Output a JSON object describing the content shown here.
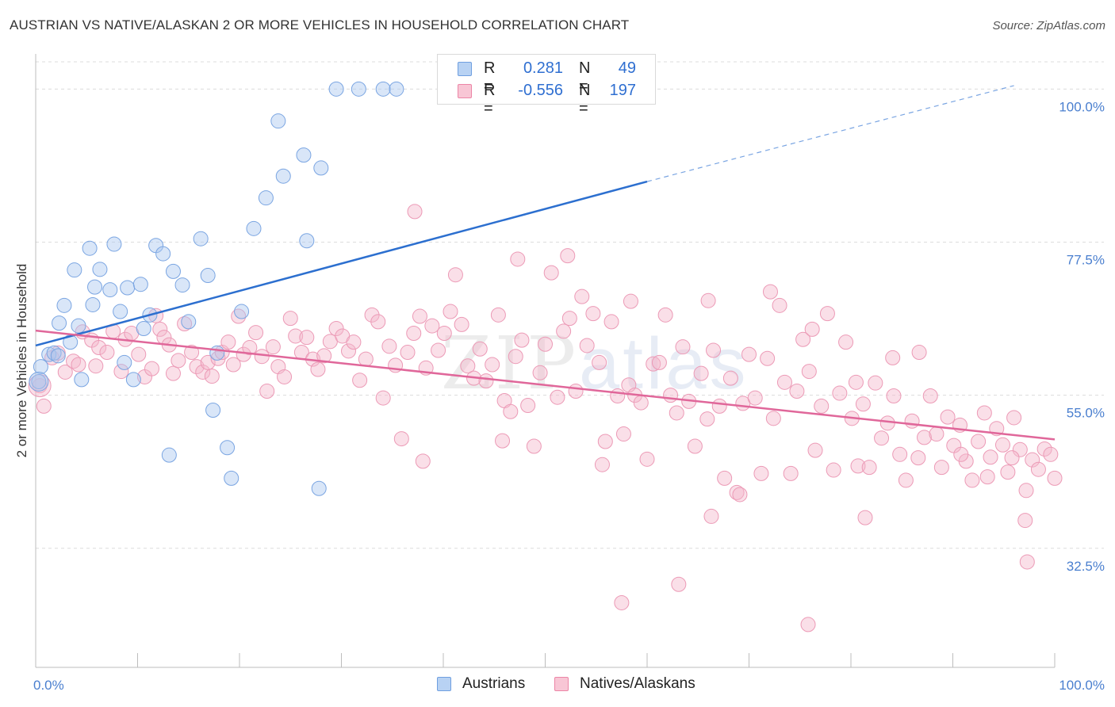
{
  "title": "AUSTRIAN VS NATIVE/ALASKAN 2 OR MORE VEHICLES IN HOUSEHOLD CORRELATION CHART",
  "source": "Source: ZipAtlas.com",
  "watermark": {
    "zip": "ZIP",
    "atlas": "atlas"
  },
  "legend": {
    "rows": [
      {
        "r_label": "R =",
        "r_value": "0.281",
        "n_label": "N =",
        "n_value": "49",
        "color": "#aac8f0"
      },
      {
        "r_label": "R =",
        "r_value": "-0.556",
        "n_label": "N =",
        "n_value": "197",
        "color": "#f5b8cb"
      }
    ]
  },
  "bottom_legend": [
    "Austrians",
    "Natives/Alaskans"
  ],
  "chart_data": {
    "type": "scatter",
    "title": "AUSTRIAN VS NATIVE/ALASKAN 2 OR MORE VEHICLES IN HOUSEHOLD CORRELATION CHART",
    "xlabel": "",
    "ylabel": "2 or more Vehicles in Household",
    "xlim": [
      0,
      100
    ],
    "ylim": [
      15,
      104
    ],
    "x_tick_labels": [
      "0.0%",
      "100.0%"
    ],
    "y_ticks": [
      32.5,
      55.0,
      77.5,
      100.0
    ],
    "y_tick_labels": [
      "32.5%",
      "55.0%",
      "77.5%",
      "100.0%"
    ],
    "grid": true,
    "legend_position": "top-center",
    "colors": {
      "austrians": "#6f9fe0",
      "natives": "#ec85a6",
      "blue_line": "#2c6fcf",
      "pink_line": "#e0679a"
    },
    "series": [
      {
        "name": "Austrians",
        "points": [
          [
            0.3,
            57.0
          ],
          [
            0.5,
            59.2
          ],
          [
            1.3,
            61.0
          ],
          [
            1.8,
            61.2
          ],
          [
            2.2,
            60.8
          ],
          [
            2.3,
            65.6
          ],
          [
            2.8,
            68.2
          ],
          [
            3.4,
            62.8
          ],
          [
            3.8,
            73.4
          ],
          [
            4.2,
            65.2
          ],
          [
            4.5,
            57.3
          ],
          [
            5.3,
            76.6
          ],
          [
            5.6,
            68.3
          ],
          [
            5.8,
            70.9
          ],
          [
            6.3,
            73.5
          ],
          [
            7.3,
            70.5
          ],
          [
            7.7,
            77.2
          ],
          [
            8.3,
            67.3
          ],
          [
            8.7,
            59.8
          ],
          [
            9.0,
            70.8
          ],
          [
            9.6,
            57.3
          ],
          [
            10.3,
            71.3
          ],
          [
            10.6,
            64.8
          ],
          [
            11.2,
            66.8
          ],
          [
            11.8,
            77.0
          ],
          [
            12.5,
            75.8
          ],
          [
            13.1,
            46.2
          ],
          [
            13.5,
            73.2
          ],
          [
            14.4,
            71.2
          ],
          [
            15.0,
            65.8
          ],
          [
            16.2,
            78.0
          ],
          [
            16.9,
            72.6
          ],
          [
            17.4,
            52.8
          ],
          [
            17.8,
            61.2
          ],
          [
            18.8,
            47.3
          ],
          [
            19.2,
            42.8
          ],
          [
            20.2,
            67.3
          ],
          [
            21.4,
            79.5
          ],
          [
            22.6,
            84.0
          ],
          [
            23.8,
            95.3
          ],
          [
            24.3,
            87.2
          ],
          [
            26.3,
            90.3
          ],
          [
            26.6,
            77.7
          ],
          [
            27.8,
            41.3
          ],
          [
            28.0,
            88.4
          ],
          [
            29.5,
            100.0
          ],
          [
            31.7,
            100.0
          ],
          [
            34.1,
            100.0
          ],
          [
            35.4,
            100.0
          ]
        ]
      },
      {
        "name": "Natives/Alaskans",
        "points": [
          [
            0.4,
            56.4
          ],
          [
            0.8,
            53.4
          ],
          [
            1.6,
            60.5
          ],
          [
            2.2,
            61.2
          ],
          [
            2.9,
            58.4
          ],
          [
            3.7,
            60.0
          ],
          [
            4.2,
            59.5
          ],
          [
            4.6,
            64.3
          ],
          [
            5.5,
            63.1
          ],
          [
            5.9,
            59.3
          ],
          [
            6.2,
            62.0
          ],
          [
            7.0,
            61.3
          ],
          [
            7.6,
            64.4
          ],
          [
            8.4,
            58.5
          ],
          [
            8.8,
            63.2
          ],
          [
            9.4,
            64.1
          ],
          [
            10.1,
            61.0
          ],
          [
            10.7,
            57.7
          ],
          [
            11.4,
            58.9
          ],
          [
            11.8,
            66.7
          ],
          [
            12.2,
            64.7
          ],
          [
            12.6,
            63.5
          ],
          [
            13.1,
            62.4
          ],
          [
            13.5,
            58.2
          ],
          [
            14.0,
            60.1
          ],
          [
            14.6,
            65.5
          ],
          [
            15.3,
            61.3
          ],
          [
            15.8,
            59.2
          ],
          [
            16.4,
            58.4
          ],
          [
            16.9,
            59.8
          ],
          [
            17.3,
            57.8
          ],
          [
            17.9,
            60.4
          ],
          [
            18.3,
            61.3
          ],
          [
            18.9,
            62.8
          ],
          [
            19.4,
            59.5
          ],
          [
            19.9,
            66.6
          ],
          [
            20.4,
            61.0
          ],
          [
            21.0,
            62.0
          ],
          [
            21.6,
            64.2
          ],
          [
            22.2,
            60.7
          ],
          [
            22.7,
            55.6
          ],
          [
            23.3,
            62.1
          ],
          [
            23.8,
            59.2
          ],
          [
            24.4,
            57.7
          ],
          [
            25.0,
            66.3
          ],
          [
            25.5,
            63.7
          ],
          [
            26.1,
            61.3
          ],
          [
            26.6,
            63.5
          ],
          [
            27.2,
            60.3
          ],
          [
            27.7,
            58.8
          ],
          [
            28.3,
            60.8
          ],
          [
            28.9,
            62.9
          ],
          [
            29.5,
            64.8
          ],
          [
            30.1,
            63.7
          ],
          [
            30.7,
            61.5
          ],
          [
            31.2,
            62.8
          ],
          [
            31.8,
            57.2
          ],
          [
            32.4,
            60.3
          ],
          [
            33.0,
            66.8
          ],
          [
            33.6,
            65.8
          ],
          [
            34.1,
            54.6
          ],
          [
            34.7,
            62.2
          ],
          [
            35.3,
            59.4
          ],
          [
            35.9,
            48.6
          ],
          [
            36.5,
            61.3
          ],
          [
            37.1,
            64.1
          ],
          [
            37.7,
            66.6
          ],
          [
            38.3,
            59.0
          ],
          [
            38.9,
            65.2
          ],
          [
            39.5,
            61.6
          ],
          [
            40.1,
            64.1
          ],
          [
            40.7,
            67.3
          ],
          [
            41.2,
            72.7
          ],
          [
            41.8,
            65.4
          ],
          [
            42.4,
            59.3
          ],
          [
            43.0,
            57.5
          ],
          [
            43.6,
            61.8
          ],
          [
            44.2,
            57.1
          ],
          [
            44.8,
            59.5
          ],
          [
            45.4,
            66.8
          ],
          [
            46.0,
            54.2
          ],
          [
            46.6,
            52.6
          ],
          [
            47.1,
            60.7
          ],
          [
            47.7,
            63.1
          ],
          [
            48.3,
            53.5
          ],
          [
            48.9,
            47.5
          ],
          [
            49.5,
            58.3
          ],
          [
            50.0,
            62.5
          ],
          [
            50.6,
            73.0
          ],
          [
            51.2,
            54.7
          ],
          [
            51.8,
            64.4
          ],
          [
            52.4,
            66.3
          ],
          [
            53.0,
            55.6
          ],
          [
            53.6,
            69.5
          ],
          [
            54.1,
            62.3
          ],
          [
            54.7,
            67.0
          ],
          [
            55.3,
            59.8
          ],
          [
            55.9,
            48.2
          ],
          [
            56.5,
            65.8
          ],
          [
            57.1,
            54.9
          ],
          [
            57.7,
            49.3
          ],
          [
            58.2,
            56.5
          ],
          [
            58.8,
            55.0
          ],
          [
            59.4,
            53.9
          ],
          [
            60.0,
            45.6
          ],
          [
            60.6,
            59.6
          ],
          [
            61.2,
            59.8
          ],
          [
            61.8,
            66.8
          ],
          [
            62.3,
            55.0
          ],
          [
            62.9,
            52.4
          ],
          [
            63.5,
            62.1
          ],
          [
            64.1,
            54.1
          ],
          [
            64.7,
            47.5
          ],
          [
            65.3,
            58.2
          ],
          [
            65.9,
            51.5
          ],
          [
            66.5,
            61.6
          ],
          [
            67.1,
            53.4
          ],
          [
            67.6,
            42.8
          ],
          [
            68.2,
            57.5
          ],
          [
            68.8,
            40.7
          ],
          [
            69.4,
            53.8
          ],
          [
            70.0,
            61.0
          ],
          [
            70.6,
            54.6
          ],
          [
            71.2,
            43.5
          ],
          [
            71.8,
            60.4
          ],
          [
            72.4,
            51.6
          ],
          [
            73.0,
            68.2
          ],
          [
            73.5,
            56.9
          ],
          [
            74.1,
            43.5
          ],
          [
            74.7,
            55.6
          ],
          [
            75.3,
            63.2
          ],
          [
            75.9,
            58.5
          ],
          [
            76.5,
            46.9
          ],
          [
            77.1,
            53.4
          ],
          [
            77.7,
            67.0
          ],
          [
            78.3,
            44.0
          ],
          [
            78.9,
            55.3
          ],
          [
            79.5,
            62.8
          ],
          [
            80.1,
            51.6
          ],
          [
            80.7,
            44.6
          ],
          [
            81.2,
            53.7
          ],
          [
            81.8,
            44.4
          ],
          [
            82.4,
            56.8
          ],
          [
            83.0,
            48.7
          ],
          [
            83.6,
            50.9
          ],
          [
            84.2,
            54.9
          ],
          [
            84.8,
            46.3
          ],
          [
            85.4,
            42.5
          ],
          [
            86.0,
            51.2
          ],
          [
            86.6,
            45.8
          ],
          [
            87.2,
            48.8
          ],
          [
            87.8,
            54.9
          ],
          [
            88.4,
            49.3
          ],
          [
            88.9,
            44.4
          ],
          [
            89.5,
            51.8
          ],
          [
            90.1,
            47.6
          ],
          [
            90.7,
            50.6
          ],
          [
            91.3,
            45.3
          ],
          [
            91.9,
            42.5
          ],
          [
            92.5,
            48.2
          ],
          [
            93.1,
            52.4
          ],
          [
            93.7,
            45.9
          ],
          [
            94.3,
            50.1
          ],
          [
            94.9,
            47.7
          ],
          [
            95.4,
            43.7
          ],
          [
            96.0,
            51.7
          ],
          [
            96.6,
            47.0
          ],
          [
            97.2,
            41.0
          ],
          [
            97.8,
            45.5
          ],
          [
            98.4,
            44.1
          ],
          [
            99.0,
            47.1
          ],
          [
            99.6,
            46.3
          ],
          [
            100.0,
            42.8
          ],
          [
            37.2,
            82.0
          ],
          [
            47.3,
            75.0
          ],
          [
            52.2,
            75.5
          ],
          [
            58.4,
            68.8
          ],
          [
            66.0,
            68.9
          ],
          [
            72.1,
            70.2
          ],
          [
            76.2,
            64.7
          ],
          [
            80.5,
            56.9
          ],
          [
            84.1,
            60.5
          ],
          [
            86.7,
            61.3
          ],
          [
            90.8,
            46.3
          ],
          [
            93.4,
            43.0
          ],
          [
            95.8,
            45.8
          ],
          [
            97.3,
            30.5
          ],
          [
            63.1,
            27.2
          ],
          [
            57.5,
            24.5
          ],
          [
            75.8,
            21.3
          ],
          [
            66.3,
            37.2
          ],
          [
            81.4,
            37.0
          ],
          [
            97.1,
            36.6
          ],
          [
            38.0,
            45.3
          ],
          [
            45.8,
            48.3
          ],
          [
            55.6,
            44.8
          ],
          [
            69.1,
            40.4
          ]
        ]
      }
    ],
    "trend_lines": [
      {
        "series": "Austrians",
        "x0": 0.0,
        "y0": 62.3,
        "x1": 60.0,
        "y1": 86.4,
        "dashed_to_x": 96.0,
        "dashed_to_y": 100.5
      },
      {
        "series": "Natives/Alaskans",
        "x0": 0.0,
        "y0": 64.5,
        "x1": 100.0,
        "y1": 48.5
      }
    ]
  }
}
